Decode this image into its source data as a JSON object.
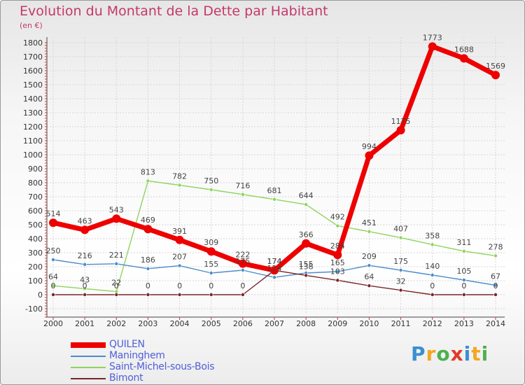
{
  "title": "Evolution du Montant de la Dette par Habitant",
  "unit": "(en €)",
  "chart_data": {
    "type": "line",
    "title": "Evolution du Montant de la Dette par Habitant",
    "ylabel": "(en €)",
    "xlabel": "",
    "x": [
      "2000",
      "2001",
      "2002",
      "2003",
      "2004",
      "2005",
      "2006",
      "2007",
      "2008",
      "2009",
      "2010",
      "2011",
      "2012",
      "2013",
      "2014"
    ],
    "ylim": [
      -100,
      1800
    ],
    "yticks": [
      -100,
      0,
      100,
      200,
      300,
      400,
      500,
      600,
      700,
      800,
      900,
      1000,
      1100,
      1200,
      1300,
      1400,
      1500,
      1600,
      1700,
      1800
    ],
    "grid": true,
    "legend_position": "bottom-left",
    "series": [
      {
        "name": "Saint-Michel-sous-Bois",
        "color": "#8ed45c",
        "width": 1.4,
        "marker": 4,
        "values": [
          64,
          43,
          22,
          813,
          782,
          750,
          716,
          681,
          644,
          492,
          451,
          407,
          358,
          311,
          278
        ],
        "labels": [
          "64",
          "43",
          "22",
          "813",
          "782",
          "750",
          "716",
          "681",
          "644",
          "492",
          "451",
          "407",
          "358",
          "311",
          "278"
        ]
      },
      {
        "name": "Maninghem",
        "color": "#4d8ccb",
        "width": 1.4,
        "marker": 4,
        "values": [
          250,
          216,
          221,
          186,
          207,
          155,
          175,
          124,
          155,
          165,
          209,
          175,
          140,
          105,
          67
        ],
        "labels": [
          "250",
          "216",
          "221",
          "186",
          "207",
          "155",
          "175",
          "124",
          "155",
          "165",
          "209",
          "175",
          "140",
          "105",
          "67"
        ]
      },
      {
        "name": "Bimont",
        "color": "#7a2628",
        "width": 1.4,
        "marker": 4,
        "values": [
          0,
          0,
          0,
          0,
          0,
          0,
          0,
          174,
          138,
          103,
          64,
          32,
          0,
          0,
          0
        ],
        "labels": [
          "0",
          "0",
          "0",
          "0",
          "0",
          "0",
          "0",
          "174",
          "138",
          "103",
          "64",
          "32",
          "0",
          "0",
          "0"
        ]
      },
      {
        "name": "QUILEN",
        "color": "#ee0000",
        "width": 7,
        "marker": 8,
        "values": [
          514,
          463,
          543,
          469,
          391,
          309,
          222,
          174,
          366,
          284,
          994,
          1175,
          1773,
          1688,
          1569
        ],
        "labels": [
          "514",
          "463",
          "543",
          "469",
          "391",
          "309",
          "222",
          "174",
          "366",
          "284",
          "994",
          "1175",
          "1773",
          "1688",
          "1569"
        ]
      }
    ],
    "legend": [
      {
        "name": "QUILEN",
        "color": "#ee0000"
      },
      {
        "name": "Maninghem",
        "color": "#4d8ccb"
      },
      {
        "name": "Saint-Michel-sous-Bois",
        "color": "#8ed45c"
      },
      {
        "name": "Bimont",
        "color": "#7a2628"
      }
    ]
  },
  "logo": {
    "letters": [
      "P",
      "r",
      "o",
      "x",
      "i",
      "t",
      "i"
    ],
    "colors": [
      "#3a8fd0",
      "#f4a622",
      "#4fb04f",
      "#e2392a",
      "#3a8fd0",
      "#f4a622",
      "#4fb04f"
    ]
  }
}
